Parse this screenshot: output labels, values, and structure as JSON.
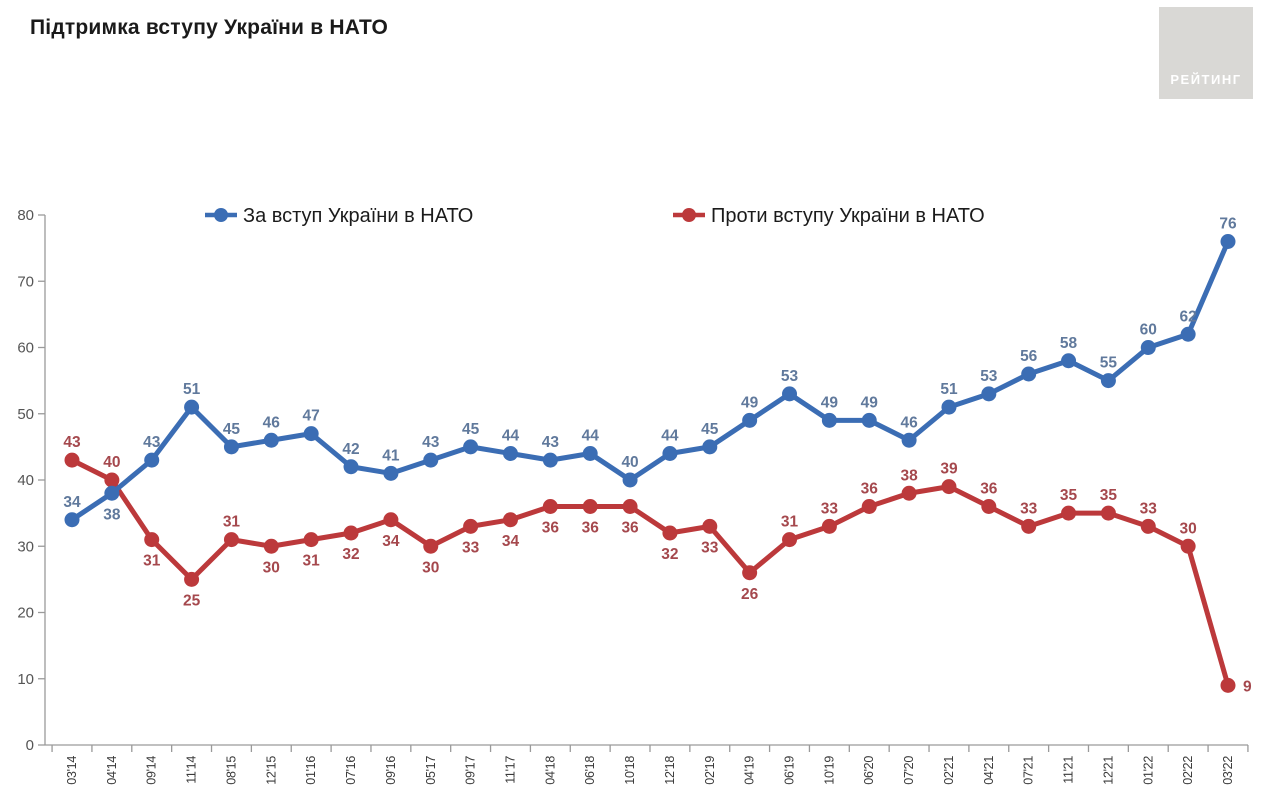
{
  "page": {
    "background": "#ffffff"
  },
  "header": {
    "title": "Підтримка вступу України в НАТО",
    "logo_text": "РЕЙТИНГ",
    "logo_bg": "#d9d8d5",
    "logo_text_color": "#ffffff"
  },
  "chart_data": {
    "type": "line",
    "title": "Підтримка вступу України в НАТО",
    "categories": [
      "03'14",
      "04'14",
      "09'14",
      "11'14",
      "08'15",
      "12'15",
      "01'16",
      "07'16",
      "09'16",
      "05'17",
      "09'17",
      "11'17",
      "04'18",
      "06'18",
      "10'18",
      "12'18",
      "02'19",
      "04'19",
      "06'19",
      "10'19",
      "06'20",
      "07'20",
      "02'21",
      "04'21",
      "07'21",
      "11'21",
      "12'21",
      "01'22",
      "02'22",
      "03'22"
    ],
    "ylim": [
      0,
      80
    ],
    "yticks": [
      0,
      10,
      20,
      30,
      40,
      50,
      60,
      70,
      80
    ],
    "grid": false,
    "legend_position": "top",
    "axis_color": "#9a9a9a",
    "ytick_label_color": "#555555",
    "xtick_label_color": "#3a3a3a",
    "legend_text_color": "#1b1b1b",
    "series": [
      {
        "name": "Проти вступу України в НАТО",
        "color": "#bc393b",
        "label_color": "#a5484d",
        "values": [
          43,
          40,
          31,
          25,
          31,
          30,
          31,
          32,
          34,
          30,
          33,
          34,
          36,
          36,
          36,
          32,
          33,
          26,
          31,
          33,
          36,
          38,
          39,
          36,
          33,
          35,
          35,
          33,
          30,
          9
        ],
        "label_positions": [
          "above",
          "above",
          "below",
          "below",
          "above",
          "below",
          "below",
          "below",
          "below",
          "below",
          "below",
          "below",
          "below",
          "below",
          "below",
          "below",
          "below",
          "below",
          "above",
          "above",
          "above",
          "above",
          "above",
          "above",
          "above",
          "above",
          "above",
          "above",
          "above",
          "right"
        ]
      },
      {
        "name": "За вступ України в НАТО",
        "color": "#3b6db4",
        "label_color": "#60799c",
        "values": [
          34,
          38,
          43,
          51,
          45,
          46,
          47,
          42,
          41,
          43,
          45,
          44,
          43,
          44,
          40,
          44,
          45,
          49,
          53,
          49,
          49,
          46,
          51,
          53,
          56,
          58,
          55,
          60,
          62,
          76
        ],
        "label_positions": [
          "above",
          "below",
          "above",
          "above",
          "above",
          "above",
          "above",
          "above",
          "above",
          "above",
          "above",
          "above",
          "above",
          "above",
          "above",
          "above",
          "above",
          "above",
          "above",
          "above",
          "above",
          "above",
          "above",
          "above",
          "above",
          "above",
          "above",
          "above",
          "above",
          "above"
        ]
      }
    ],
    "legend_order": [
      1,
      0
    ]
  }
}
